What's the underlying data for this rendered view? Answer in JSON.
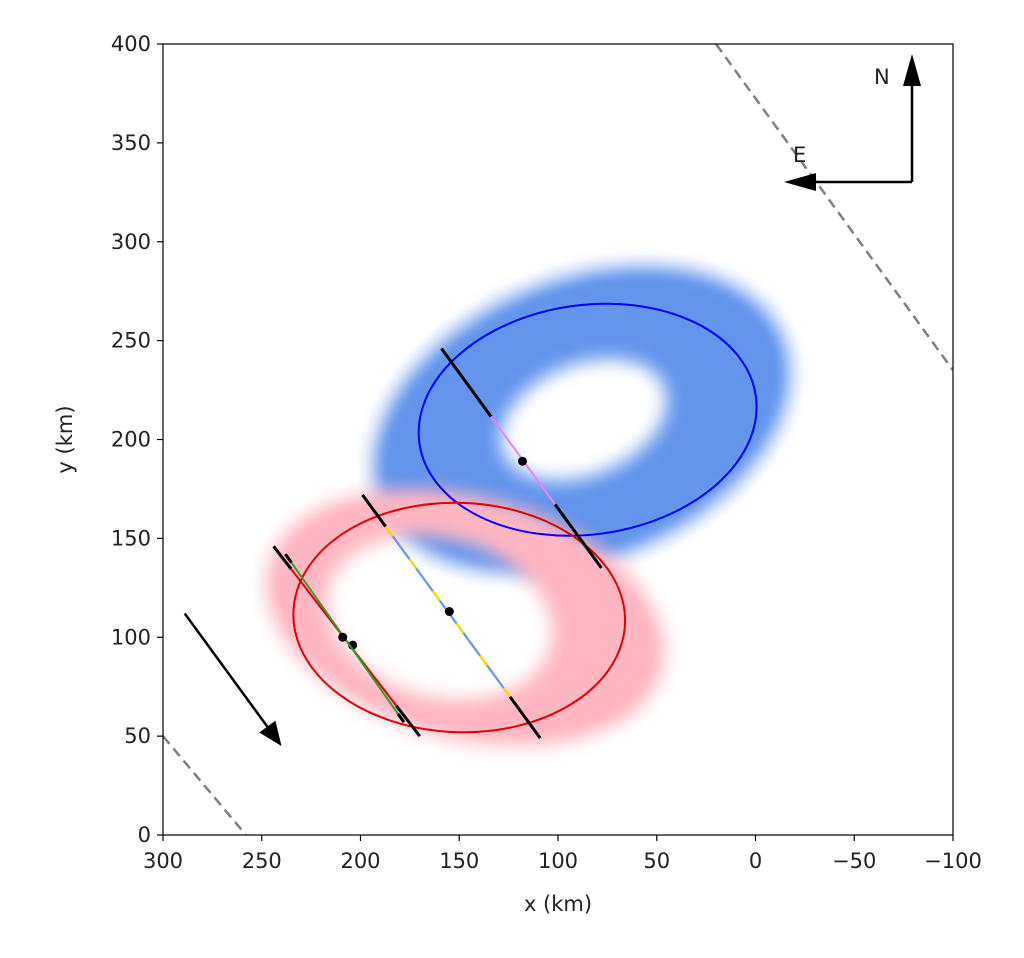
{
  "chart_data": {
    "type": "scatter",
    "xlabel": "x (km)",
    "ylabel": "y (km)",
    "xlim": [
      300,
      -100
    ],
    "ylim": [
      0,
      400
    ],
    "xticks": [
      300,
      250,
      200,
      150,
      100,
      50,
      0,
      -50,
      -100
    ],
    "xtick_labels": [
      "300",
      "250",
      "200",
      "150",
      "100",
      "50",
      "0",
      "−50",
      "−100"
    ],
    "yticks": [
      0,
      50,
      100,
      150,
      200,
      250,
      300,
      350,
      400
    ],
    "ytick_labels": [
      "0",
      "50",
      "100",
      "150",
      "200",
      "250",
      "300",
      "350",
      "400"
    ],
    "grid": false,
    "compass": {
      "north_label": "N",
      "east_label": "E"
    },
    "bodies": [
      {
        "name": "blue",
        "color": "#0000ff",
        "cloud_color": "#6495ed",
        "center": [
          85,
          210
        ],
        "semi_axis_x": 86,
        "semi_axis_y": 58,
        "angle_deg": -8,
        "cloud_outer": {
          "center": [
            88,
            210
          ],
          "semi_axis_x": 111,
          "semi_axis_y": 72,
          "angle_deg": -22
        },
        "cloud_hole": {
          "center": [
            87,
            210
          ],
          "semi_axis_x": 44,
          "semi_axis_y": 28,
          "angle_deg": -22
        }
      },
      {
        "name": "red",
        "color": "#e00000",
        "cloud_color": "#ffb6c1",
        "center": [
          150,
          110
        ],
        "semi_axis_x": 84,
        "semi_axis_y": 58,
        "angle_deg": 2,
        "cloud_outer": {
          "center": [
            147,
            110
          ],
          "semi_axis_x": 104,
          "semi_axis_y": 62,
          "angle_deg": 15
        },
        "cloud_hole": {
          "center": [
            160,
            110
          ],
          "semi_axis_x": 58,
          "semi_axis_y": 40,
          "angle_deg": 15
        }
      }
    ],
    "chords": [
      {
        "start": [
          159,
          246
        ],
        "end": [
          78,
          135
        ],
        "segments": [
          {
            "from": 0,
            "to": 0.31,
            "color": "#000000",
            "width": 3
          },
          {
            "from": 0.31,
            "to": 0.71,
            "color": "#ee82ee",
            "width": 2
          },
          {
            "from": 0.71,
            "to": 1,
            "color": "#000000",
            "width": 3
          }
        ],
        "points": [
          [
            118,
            189
          ]
        ]
      },
      {
        "start": [
          199,
          172
        ],
        "end": [
          109,
          49
        ],
        "segments": [
          {
            "from": 0,
            "to": 0.13,
            "color": "#000000",
            "width": 3
          },
          {
            "from": 0.13,
            "to": 0.83,
            "color": "#6495ed",
            "width": 2.2
          },
          {
            "from": 0.83,
            "to": 1,
            "color": "#000000",
            "width": 3
          }
        ],
        "dashes": {
          "from": 0.13,
          "to": 0.83,
          "color": "#ffd700",
          "on": 12,
          "off": 28
        },
        "points": [
          [
            155,
            113
          ]
        ]
      },
      {
        "start": [
          244,
          146
        ],
        "end": [
          170,
          50
        ],
        "segments": [
          {
            "from": 0,
            "to": 0.12,
            "color": "#000000",
            "width": 3
          },
          {
            "from": 0.12,
            "to": 0.84,
            "color": "#e00000",
            "width": 2
          },
          {
            "from": 0.84,
            "to": 1,
            "color": "#000000",
            "width": 3
          }
        ],
        "points": [
          [
            204,
            96
          ]
        ]
      },
      {
        "start": [
          238,
          142
        ],
        "end": [
          178,
          57
        ],
        "segments": [
          {
            "from": 0,
            "to": 0.05,
            "color": "#000000",
            "width": 3
          },
          {
            "from": 0.05,
            "to": 0.95,
            "color": "#2ca02c",
            "width": 2
          },
          {
            "from": 0.95,
            "to": 1,
            "color": "#000000",
            "width": 3
          }
        ],
        "points": [
          [
            209,
            100
          ]
        ]
      }
    ],
    "dashed_lines": [
      {
        "start": [
          20,
          400
        ],
        "end": [
          -100,
          235
        ],
        "color": "#808080"
      },
      {
        "start": [
          300,
          50
        ],
        "end": [
          258,
          0
        ],
        "color": "#808080"
      }
    ],
    "direction_arrow": {
      "start": [
        289,
        112
      ],
      "end": [
        240,
        45
      ]
    }
  }
}
